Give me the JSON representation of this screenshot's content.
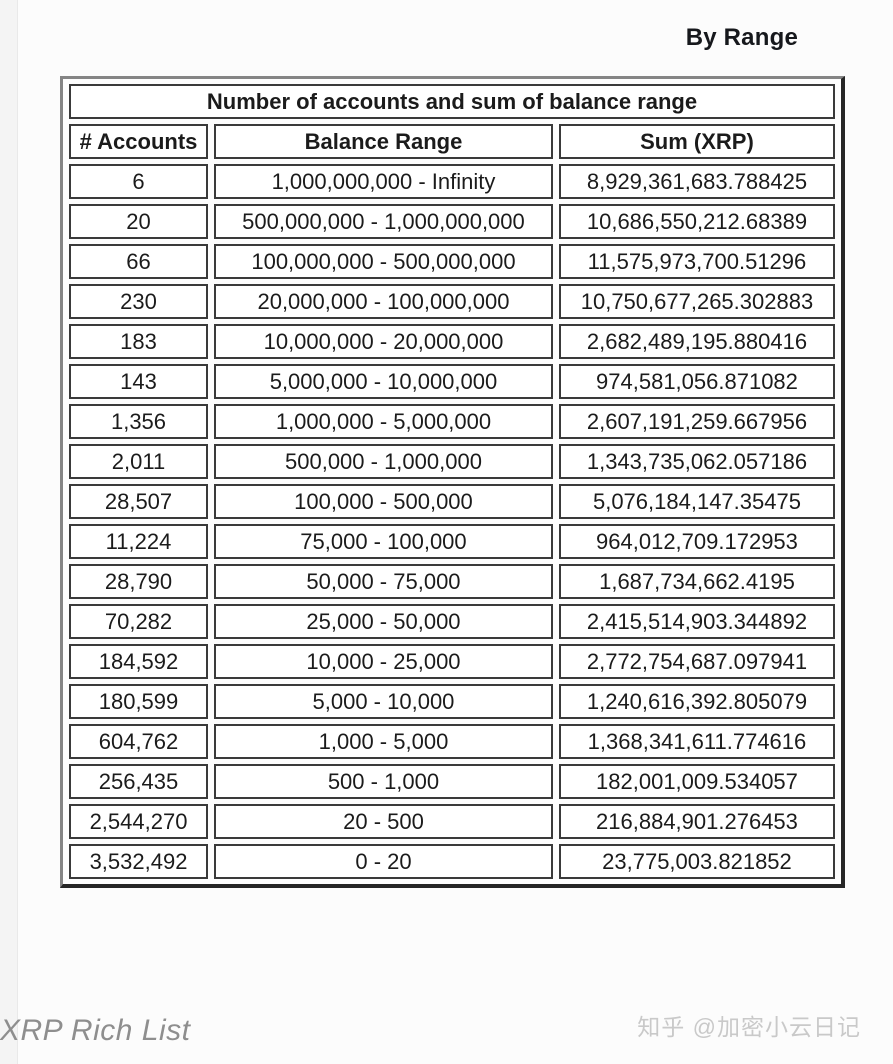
{
  "page": {
    "header_label": "By Range",
    "footer_caption": "XRP Rich List",
    "watermark": "知乎 @加密小云日记"
  },
  "chart_data": {
    "type": "table",
    "title": "Number of accounts and sum of balance range",
    "columns": [
      "# Accounts",
      "Balance Range",
      "Sum (XRP)"
    ],
    "rows": [
      [
        "6",
        "1,000,000,000 - Infinity",
        "8,929,361,683.788425"
      ],
      [
        "20",
        "500,000,000 - 1,000,000,000",
        "10,686,550,212.68389"
      ],
      [
        "66",
        "100,000,000 - 500,000,000",
        "11,575,973,700.51296"
      ],
      [
        "230",
        "20,000,000 - 100,000,000",
        "10,750,677,265.302883"
      ],
      [
        "183",
        "10,000,000 - 20,000,000",
        "2,682,489,195.880416"
      ],
      [
        "143",
        "5,000,000 - 10,000,000",
        "974,581,056.871082"
      ],
      [
        "1,356",
        "1,000,000 - 5,000,000",
        "2,607,191,259.667956"
      ],
      [
        "2,011",
        "500,000 - 1,000,000",
        "1,343,735,062.057186"
      ],
      [
        "28,507",
        "100,000 - 500,000",
        "5,076,184,147.35475"
      ],
      [
        "11,224",
        "75,000 - 100,000",
        "964,012,709.172953"
      ],
      [
        "28,790",
        "50,000 - 75,000",
        "1,687,734,662.4195"
      ],
      [
        "70,282",
        "25,000 - 50,000",
        "2,415,514,903.344892"
      ],
      [
        "184,592",
        "10,000 - 25,000",
        "2,772,754,687.097941"
      ],
      [
        "180,599",
        "5,000 - 10,000",
        "1,240,616,392.805079"
      ],
      [
        "604,762",
        "1,000 - 5,000",
        "1,368,341,611.774616"
      ],
      [
        "256,435",
        "500 - 1,000",
        "182,001,009.534057"
      ],
      [
        "2,544,270",
        "20 - 500",
        "216,884,901.276453"
      ],
      [
        "3,532,492",
        "0 - 20",
        "23,775,003.821852"
      ]
    ]
  }
}
